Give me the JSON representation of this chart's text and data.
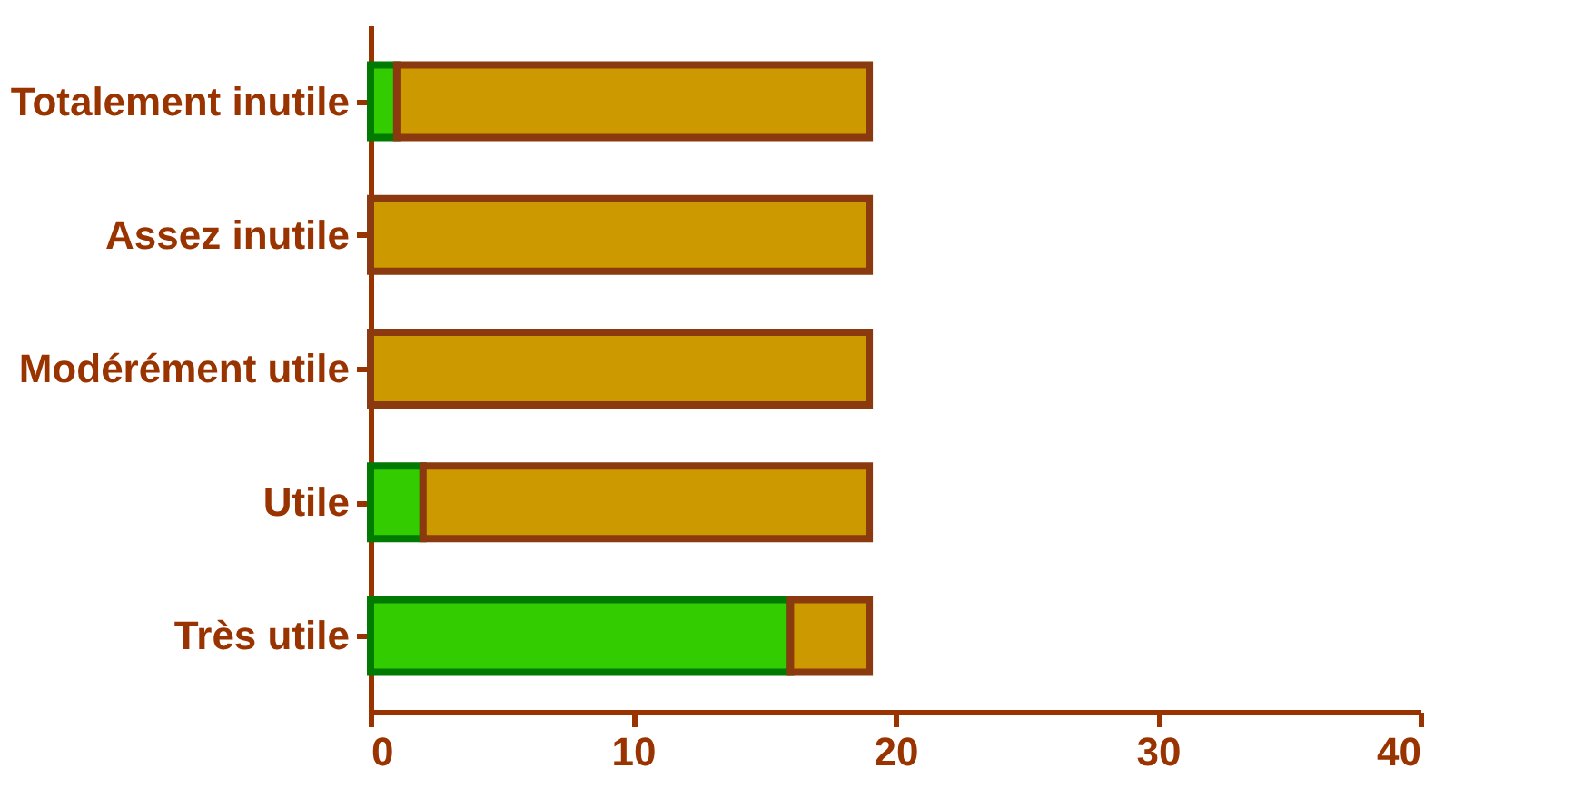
{
  "chart_data": {
    "type": "bar",
    "orientation": "horizontal",
    "stacked": true,
    "categories": [
      "Totalement inutile",
      "Assez inutile",
      "Modérément utile",
      "Utile",
      "Très utile"
    ],
    "series": [
      {
        "color": "#33cc00",
        "values": [
          1,
          0,
          0,
          2,
          16
        ]
      },
      {
        "color": "#cc9900",
        "values": [
          18,
          19,
          19,
          17,
          3
        ]
      }
    ],
    "xlim": [
      0,
      40
    ],
    "xticks": [
      0,
      10,
      20,
      30,
      40
    ],
    "grid": false
  }
}
